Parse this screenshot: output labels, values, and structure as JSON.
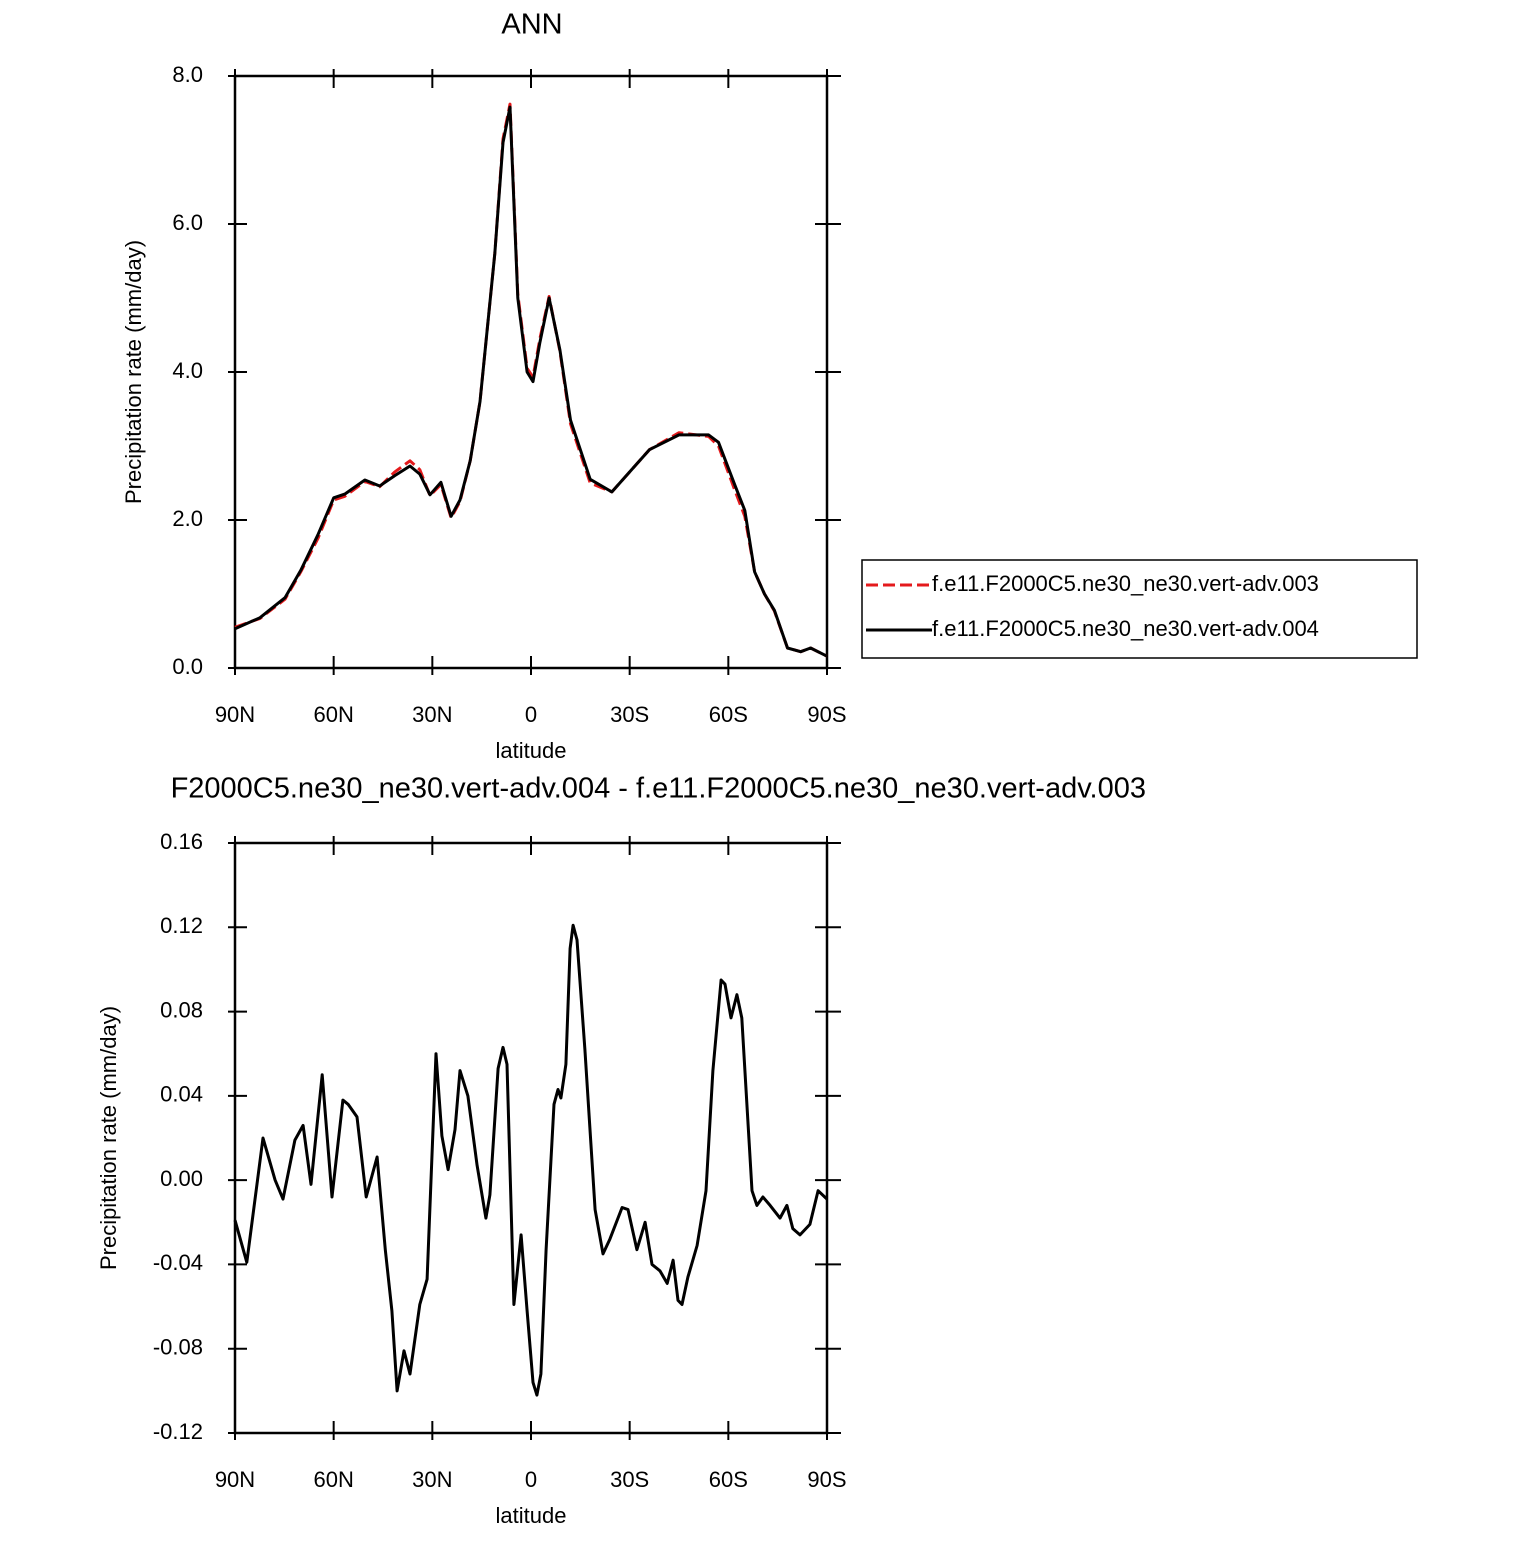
{
  "chart_data": [
    {
      "type": "line",
      "title": "ANN",
      "xlabel": "latitude",
      "ylabel": "Precipitation rate (mm/day)",
      "xlim": [
        90,
        -90
      ],
      "xticks": [
        {
          "value": 90,
          "label": "90N"
        },
        {
          "value": 60,
          "label": "60N"
        },
        {
          "value": 30,
          "label": "30N"
        },
        0,
        {
          "value": -30,
          "label": "30S"
        },
        {
          "value": -60,
          "label": "60S"
        },
        {
          "value": -90,
          "label": "90S"
        }
      ],
      "ylim": [
        0,
        8
      ],
      "yticks": [
        {
          "value": 0,
          "label": "0.0"
        },
        {
          "value": 2,
          "label": "2.0"
        },
        {
          "value": 4,
          "label": "4.0"
        },
        {
          "value": 6,
          "label": "6.0"
        },
        {
          "value": 8,
          "label": "8.0"
        }
      ],
      "legend": "right",
      "x": [
        90,
        82.4,
        74.8,
        70,
        64.8,
        60,
        56.6,
        50.5,
        46,
        41.4,
        36.8,
        33.8,
        30.7,
        27.4,
        24.3,
        21.6,
        18.5,
        15.5,
        11,
        8.5,
        6.4,
        4,
        1.2,
        -0.6,
        -2.7,
        -5.5,
        -8.8,
        -12,
        -18,
        -24.6,
        -36,
        -45,
        -54,
        -57,
        -62,
        -65,
        -68,
        -71,
        -74,
        -78,
        -82,
        -85,
        -90
      ],
      "series": [
        {
          "name": "f.e11.F2000C5.ne30_ne30.vert-adv.003",
          "color": "#e41a1c",
          "style": "dashed",
          "values": [
            0.55,
            0.67,
            0.93,
            1.3,
            1.75,
            2.27,
            2.32,
            2.52,
            2.45,
            2.65,
            2.8,
            2.68,
            2.33,
            2.48,
            2.03,
            2.25,
            2.8,
            3.6,
            5.6,
            7.15,
            7.62,
            5.05,
            4.05,
            3.93,
            4.45,
            5.02,
            4.28,
            3.3,
            2.5,
            2.38,
            2.95,
            3.18,
            3.13,
            3.0,
            2.4,
            2.05,
            1.3,
            1.0,
            0.77,
            0.27,
            0.22,
            0.27,
            0.16
          ]
        },
        {
          "name": "f.e11.F2000C5.ne30_ne30.vert-adv.004",
          "color": "#000000",
          "style": "solid",
          "values": [
            0.53,
            0.68,
            0.95,
            1.32,
            1.8,
            2.3,
            2.35,
            2.54,
            2.46,
            2.6,
            2.73,
            2.62,
            2.34,
            2.51,
            2.05,
            2.27,
            2.8,
            3.6,
            5.6,
            7.1,
            7.58,
            5.0,
            4.0,
            3.87,
            4.4,
            5.0,
            4.3,
            3.35,
            2.55,
            2.38,
            2.95,
            3.15,
            3.15,
            3.05,
            2.47,
            2.13,
            1.3,
            1.0,
            0.78,
            0.27,
            0.22,
            0.27,
            0.16
          ]
        }
      ]
    },
    {
      "type": "line",
      "title": "F2000C5.ne30_ne30.vert-adv.004 - f.e11.F2000C5.ne30_ne30.vert-adv.003",
      "xlabel": "latitude",
      "ylabel": "Precipitation rate (mm/day)",
      "xlim": [
        90,
        -90
      ],
      "xticks": [
        {
          "value": 90,
          "label": "90N"
        },
        {
          "value": 60,
          "label": "60N"
        },
        {
          "value": 30,
          "label": "30N"
        },
        0,
        {
          "value": -30,
          "label": "30S"
        },
        {
          "value": -60,
          "label": "60S"
        },
        {
          "value": -90,
          "label": "90S"
        }
      ],
      "ylim": [
        -0.12,
        0.16
      ],
      "yticks": [
        -0.12,
        -0.08,
        -0.04,
        {
          "value": 0,
          "label": "0.00"
        },
        0.04,
        0.08,
        0.12,
        0.16
      ],
      "color": "#000000",
      "x": [
        90,
        86.4,
        81.5,
        77.8,
        75.4,
        71.8,
        69.3,
        66.9,
        63.5,
        60.5,
        57.2,
        55.6,
        52.9,
        50.1,
        46.8,
        44.3,
        42.3,
        40.7,
        38.6,
        36.8,
        33.8,
        31.6,
        28.9,
        27.1,
        25.2,
        23.1,
        21.6,
        19.2,
        16.4,
        13.7,
        12.5,
        10,
        8.5,
        7.3,
        5.2,
        3,
        1.2,
        -0.6,
        -1.8,
        -3,
        -4.6,
        -7,
        -8.2,
        -9.1,
        -10.6,
        -11.9,
        -12.8,
        -14,
        -16.4,
        -19.5,
        -21.9,
        -24,
        -27.7,
        -29.5,
        -32.2,
        -34.7,
        -36.8,
        -39.2,
        -41.4,
        -43.2,
        -44.7,
        -45.9,
        -47.7,
        -50.5,
        -53.2,
        -55.3,
        -57.8,
        -59,
        -60.8,
        -62.6,
        -64.1,
        -67.2,
        -68.7,
        -70.5,
        -72.7,
        -75.7,
        -77.8,
        -79.6,
        -81.8,
        -84.8,
        -87.3,
        -90
      ],
      "values": [
        -0.019,
        -0.039,
        0.02,
        0.0,
        -0.009,
        0.019,
        0.026,
        -0.002,
        0.05,
        -0.008,
        0.038,
        0.036,
        0.03,
        -0.008,
        0.011,
        -0.033,
        -0.062,
        -0.1,
        -0.081,
        -0.092,
        -0.059,
        -0.047,
        0.06,
        0.021,
        0.005,
        0.024,
        0.052,
        0.04,
        0.007,
        -0.018,
        -0.007,
        0.053,
        0.063,
        0.055,
        -0.059,
        -0.026,
        -0.062,
        -0.096,
        -0.102,
        -0.092,
        -0.033,
        0.036,
        0.043,
        0.039,
        0.055,
        0.11,
        0.121,
        0.114,
        0.062,
        -0.014,
        -0.035,
        -0.028,
        -0.013,
        -0.014,
        -0.033,
        -0.02,
        -0.04,
        -0.043,
        -0.049,
        -0.038,
        -0.057,
        -0.059,
        -0.046,
        -0.031,
        -0.005,
        0.052,
        0.095,
        0.093,
        0.077,
        0.088,
        0.077,
        -0.005,
        -0.012,
        -0.008,
        -0.012,
        -0.018,
        -0.012,
        -0.023,
        -0.026,
        -0.021,
        -0.005,
        -0.009
      ]
    }
  ]
}
